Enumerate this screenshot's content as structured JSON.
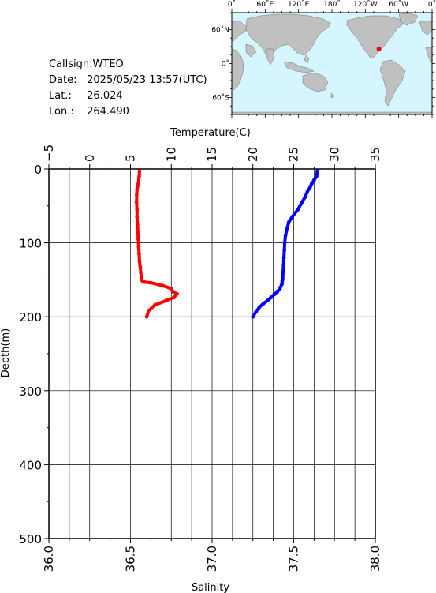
{
  "info": {
    "callsign_label": "Callsign:",
    "callsign": "WTEO",
    "date_label": "Date:",
    "date": "2025/05/23 13:57(UTC)",
    "lat_label": "Lat.:",
    "lat": "26.024",
    "lon_label": "Lon.:",
    "lon": "264.490"
  },
  "map": {
    "lon_labels": [
      "0˚",
      "60˚E",
      "120˚E",
      "180˚",
      "120˚W",
      "60˚W",
      "0˚"
    ],
    "lat_labels": [
      "60˚N",
      "0˚",
      "60˚S"
    ],
    "station": {
      "lon": 264.49,
      "lat": 26.024
    },
    "ocean_color": "#d6f6ff",
    "land_color": "#c0c0c0",
    "marker_color": "#ff0000"
  },
  "chart_data": {
    "type": "line",
    "ylabel": "Depth(m)",
    "ylim": [
      500,
      0
    ],
    "yticks": [
      "0",
      "100",
      "200",
      "300",
      "400",
      "500"
    ],
    "temperature_axis": {
      "label": "Temperature(C)",
      "range": [
        -5,
        35
      ],
      "ticks": [
        "−5",
        "0",
        "5",
        "10",
        "15",
        "20",
        "25",
        "30",
        "35"
      ]
    },
    "salinity_axis": {
      "label": "Salinity",
      "range": [
        36.0,
        38.0
      ],
      "ticks": [
        "36.0",
        "36.5",
        "37.0",
        "37.5",
        "38.0"
      ]
    },
    "grid": true,
    "series": [
      {
        "axis": "salinity",
        "color": "#ff0000",
        "x": [
          36.555,
          36.553,
          36.548,
          36.54,
          36.538,
          36.537,
          36.54,
          36.54,
          36.543,
          36.545,
          36.548,
          36.55,
          36.553,
          36.555,
          36.56,
          36.563,
          36.566,
          36.568,
          36.575,
          36.585,
          36.625,
          36.7,
          36.75,
          36.76,
          36.785,
          36.765,
          36.72,
          36.65,
          36.61,
          36.6
        ],
        "y": [
          3,
          10,
          20,
          28,
          35,
          45,
          55,
          65,
          75,
          85,
          95,
          105,
          115,
          125,
          133,
          140,
          145,
          150,
          152,
          153,
          154,
          158,
          162,
          166,
          169,
          174,
          178,
          184,
          192,
          200
        ]
      },
      {
        "axis": "temperature",
        "color": "#0000ff",
        "x": [
          27.9,
          27.8,
          27.5,
          27.2,
          27.0,
          26.7,
          26.4,
          26.0,
          25.5,
          24.8,
          24.4,
          24.2,
          24.0,
          23.9,
          23.85,
          23.8,
          23.75,
          23.7,
          23.65,
          23.6,
          23.55,
          23.3,
          23.0,
          22.6,
          22.2,
          21.8,
          21.3,
          20.8,
          20.4,
          20.0
        ],
        "y": [
          3,
          10,
          15,
          20,
          25,
          30,
          38,
          45,
          55,
          65,
          72,
          80,
          90,
          100,
          110,
          120,
          130,
          140,
          148,
          152,
          156,
          162,
          166,
          170,
          174,
          178,
          182,
          187,
          193,
          200
        ]
      }
    ]
  }
}
